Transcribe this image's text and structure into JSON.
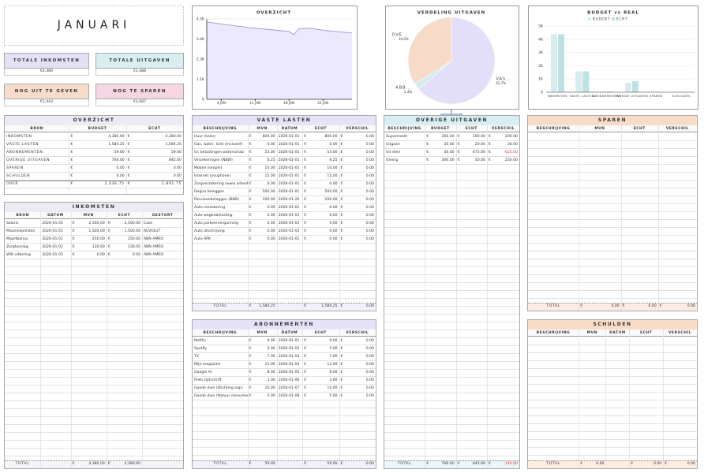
{
  "header": {
    "title": "JANUARI"
  },
  "currency": "€",
  "summary": [
    {
      "label": "TOTALE INKOMSTEN",
      "value": "€4,380"
    },
    {
      "label": "TOTALE UITGAVEN",
      "value": "€2,488"
    },
    {
      "label": "NOG UIT TE GEVEN",
      "value": "€1,443"
    },
    {
      "label": "NOG TE SPAREN",
      "value": "€2,087"
    }
  ],
  "chart_data": [
    {
      "type": "line",
      "title": "OVERZICHT",
      "x": [
        1,
        5,
        10,
        15,
        18,
        19,
        20,
        22,
        26,
        31
      ],
      "values": [
        4330,
        4180,
        4010,
        3880,
        3800,
        3620,
        3950,
        3980,
        3840,
        3710
      ],
      "color": "#8f8ad0",
      "xlim": [
        1,
        31
      ],
      "ylim": [
        0,
        4500
      ],
      "xticks": [
        {
          "value": 4,
          "label": "4 JAN"
        },
        {
          "value": 11,
          "label": "11 JAN"
        },
        {
          "value": 18,
          "label": "18 JAN"
        },
        {
          "value": 25,
          "label": "25 JAN"
        }
      ],
      "yticks": [
        0,
        {
          "value": 1125,
          "label": "1.1K"
        },
        {
          "value": 2250,
          "label": "2.3K"
        },
        {
          "value": 3375,
          "label": "3.4K"
        },
        {
          "value": 4500,
          "label": "4.5K"
        }
      ],
      "grid": true
    },
    {
      "type": "pie",
      "title": "VERDELING UITGAVEN",
      "categories": [
        "VAS...",
        "ABB...",
        "OVE..."
      ],
      "values": [
        63.7,
        2.4,
        34.0
      ],
      "value_labels": [
        "63.7%",
        "2.4%",
        "34.0%"
      ],
      "colors": [
        "#e3dff8",
        "#d3ecef",
        "#f7dbc8"
      ]
    },
    {
      "type": "bar",
      "title": "BUDGET vs REAL",
      "categories": [
        "INKOMSTEN",
        "VASTE LASTEN",
        "ABONNEMENTEN",
        "OVERIGE UITGAVEN",
        "SPAREN",
        "SCHULDEN"
      ],
      "series": [
        {
          "name": "BUDGET",
          "color": "#d6ecee",
          "values": [
            4380,
            1584.25,
            59,
            700,
            0,
            0
          ]
        },
        {
          "name": "ECHT",
          "color": "#bfe0e5",
          "values": [
            4380,
            1584.25,
            59,
            845,
            0,
            0
          ]
        }
      ],
      "ylim": [
        0,
        5000
      ],
      "yticks": [
        0,
        {
          "value": 1000,
          "label": "1K"
        },
        {
          "value": 2000,
          "label": "2K"
        },
        {
          "value": 3000,
          "label": "3K"
        },
        {
          "value": 4000,
          "label": "4K"
        },
        {
          "value": 5000,
          "label": "5K"
        }
      ],
      "legend": "top",
      "grid": true
    }
  ],
  "tables": [
    {
      "title": "OVERZICHT",
      "headers": [
        "BRON",
        "BUDGET",
        "ECHT"
      ],
      "rows": [
        [
          "INKOMSTEN",
          "4,380.00",
          "4,380.00"
        ],
        [
          "VASTE LASTEN",
          "1,584.25",
          "1,584.25"
        ],
        [
          "ABONNEMENTEN",
          "59.00",
          "59.00"
        ],
        [
          "OVERIGE UITGAVEN",
          "700.00",
          "845.00"
        ],
        [
          "SPAREN",
          "0.00",
          "0.00"
        ],
        [
          "SCHULDEN",
          "0.00",
          "0.00"
        ],
        [
          "OVER",
          "2,036.75",
          "1,891.75"
        ]
      ]
    },
    {
      "title": "INKOMSTEN",
      "headers": [
        "BRON",
        "DATUM",
        "MVN",
        "ECHT",
        "GESTORT"
      ],
      "rows": [
        [
          "Salaris",
          "2026-01-01",
          "2,500.00",
          "2,500.00",
          "Cash"
        ],
        [
          "Maaninkomsten",
          "2026-01-01",
          "1,500.00",
          "1,500.00",
          "REVOLUT"
        ],
        [
          "Maartbonus",
          "2026-01-01",
          "250.00",
          "250.00",
          "ABN AMRO"
        ],
        [
          "Zorgtoeslag",
          "2026-01-02",
          "130.00",
          "130.00",
          "ABN AMRO"
        ],
        [
          "WW uitkering",
          "2026-01-05",
          "0.00",
          "0.00",
          "ABN AMRO"
        ]
      ],
      "total": {
        "label": "TOTAL",
        "values": [
          null,
          null,
          "4,380.00",
          "4,380.00",
          null
        ]
      }
    },
    {
      "title": "VASTE LASTEN",
      "headers": [
        "BESCHRIJVING",
        "MVN",
        "DATUM",
        "ECHT",
        "VERSCHIL"
      ],
      "rows": [
        [
          "Huur (kaler)",
          "800.00",
          "2026-01-01",
          "800.00",
          "0.00"
        ],
        [
          "Gas, water, licht (inclusief)",
          "0.00",
          "2026-01-01",
          "0.00",
          "0.00"
        ],
        [
          "Gr. belastingen waterschap",
          "53.00",
          "2026-01-01",
          "53.00",
          "0.00"
        ],
        [
          "Verzekeringen (NBW)",
          "6.25",
          "2026-01-01",
          "6.25",
          "0.00"
        ],
        [
          "Mobiel (simpel)",
          "10.00",
          "2026-01-01",
          "10.00",
          "0.00"
        ],
        [
          "Internet (youphone)",
          "15.00",
          "2026-01-01",
          "15.00",
          "0.00"
        ],
        [
          "Zorgverzekering (www arbeidszaal)",
          "0.00",
          "2026-01-01",
          "0.00",
          "0.00"
        ],
        [
          "Degiro beleggen",
          "500.00",
          "2026-01-01",
          "500.00",
          "0.00"
        ],
        [
          "Pensioenbeleggen (BND)",
          "200.00",
          "2026-01-20",
          "200.00",
          "0.00"
        ],
        [
          "Auto verzekering",
          "0.00",
          "2026-01-01",
          "0.00",
          "0.00"
        ],
        [
          "Auto wegenbelasting",
          "0.00",
          "2026-01-01",
          "0.00",
          "0.00"
        ],
        [
          "Auto parkeervergunning",
          "0.00",
          "2026-01-01",
          "0.00",
          "0.00"
        ],
        [
          "Auto afschrijving",
          "0.00",
          "2026-01-01",
          "0.00",
          "0.00"
        ],
        [
          "Auto APK",
          "0.00",
          "2026-01-01",
          "0.00",
          "0.00"
        ]
      ],
      "total": {
        "label": "TOTAL",
        "values": [
          null,
          "1,584.25",
          null,
          "1,584.25",
          "0.00"
        ]
      }
    },
    {
      "title": "ABONNEMENTEN",
      "headers": [
        "BESCHRIJVING",
        "MVN",
        "DATUM",
        "ECHT",
        "VERSCHIL"
      ],
      "rows": [
        [
          "Netflix",
          "9.00",
          "2026-01-01",
          "9.00",
          "0.00"
        ],
        [
          "Spotify",
          "5.00",
          "2026-01-02",
          "5.00",
          "0.00"
        ],
        [
          "TV",
          "7.00",
          "2026-01-03",
          "7.00",
          "0.00"
        ],
        [
          "Mijn magazine",
          "12.00",
          "2026-01-04",
          "12.00",
          "0.00"
        ],
        [
          "Google AI",
          "8.00",
          "2026-01-05",
          "8.00",
          "0.00"
        ],
        [
          "Prets tijdschrift",
          "3.00",
          "2026-01-06",
          "3.00",
          "0.00"
        ],
        [
          "Goede doel (Stichting aap)",
          "10.00",
          "2026-01-07",
          "10.00",
          "0.00"
        ],
        [
          "Goede doel (Natuur monumenten)",
          "5.00",
          "2026-01-08",
          "5.00",
          "0.00"
        ]
      ],
      "total": {
        "label": "TOTAL",
        "values": [
          null,
          "59.00",
          null,
          "59.00",
          "0.00"
        ]
      }
    },
    {
      "title": "OVERIGE UITGAVEN",
      "headers": [
        "BESCHRIJVING",
        "BUDGET",
        "ECHT",
        "VERSCHIL"
      ],
      "rows": [
        [
          "Supermarkt",
          "300.00",
          "100.00",
          "200.00"
        ],
        [
          "Uitgaan",
          "50.00",
          "20.00",
          "30.00"
        ],
        [
          "Uit eten",
          "50.00",
          "675.00",
          "-625.00"
        ],
        [
          "Overig",
          "300.00",
          "50.00",
          "250.00"
        ]
      ],
      "total": {
        "label": "TOTAL",
        "values": [
          null,
          "700.00",
          "845.00",
          "-145.00"
        ]
      }
    },
    {
      "title": "SPAREN",
      "headers": [
        "BESCHRIJVING",
        "MVN",
        "ECHT",
        "VERSCHIL"
      ],
      "rows": [],
      "total": {
        "label": "TOTAL",
        "values": [
          null,
          "0.00",
          "0.00",
          "0.00"
        ]
      }
    },
    {
      "title": "SCHULDEN",
      "headers": [
        "BESCHRIJVING",
        "MVN",
        "DATUM",
        "ECHT",
        "VERSCHIL"
      ],
      "rows": [],
      "total": {
        "label": "TOTAL",
        "values": [
          null,
          "0.00",
          null,
          "0.00",
          "0.00"
        ]
      }
    }
  ]
}
